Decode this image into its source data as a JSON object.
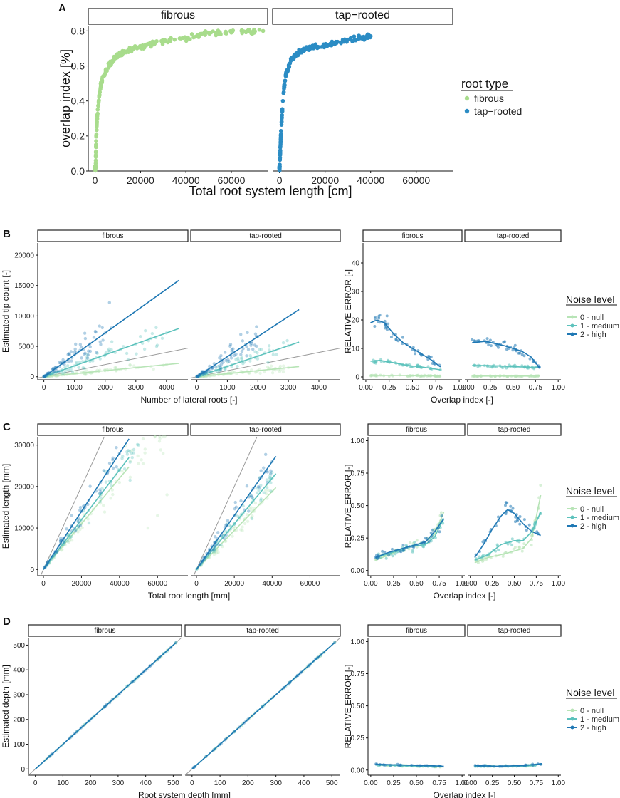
{
  "colors": {
    "fibrous": "#a8dc8c",
    "tap_rooted": "#2b8cc4",
    "noise_null": "#b7e4b6",
    "noise_medium": "#5cc2bc",
    "noise_high": "#1f78b4",
    "identity": "#9a9a9a"
  },
  "panelA": {
    "label": "A",
    "facets": [
      "fibrous",
      "tap−rooted"
    ],
    "xlabel": "Total root system length [cm]",
    "ylabel": "overlap index [%]",
    "xticks": [
      "0",
      "20000",
      "40000",
      "60000"
    ],
    "yticks": [
      "0.0",
      "0.2",
      "0.4",
      "0.6",
      "0.8"
    ],
    "legend": {
      "title": "root type",
      "items": [
        "fibrous",
        "tap−rooted"
      ]
    }
  },
  "panelB": {
    "label": "B",
    "facets": [
      "fibrous",
      "tap-rooted"
    ],
    "left_xlabel": "Number of lateral roots [-]",
    "left_ylabel": "Estimated tip count [-]",
    "left_xticks": [
      "0",
      "1000",
      "2000",
      "3000",
      "4000"
    ],
    "left_yticks": [
      "0",
      "5000",
      "10000",
      "15000",
      "20000"
    ],
    "right_xlabel": "Overlap index [-]",
    "right_ylabel": "RELATIVE ERROR [-]",
    "right_xticks": [
      "0.00",
      "0.25",
      "0.50",
      "0.75",
      "1.00"
    ],
    "right_yticks": [
      "0",
      "10",
      "20",
      "30",
      "40"
    ]
  },
  "panelC": {
    "label": "C",
    "facets": [
      "fibrous",
      "tap-rooted"
    ],
    "left_xlabel": "Total root length [mm]",
    "left_ylabel": "Estimated length [mm]",
    "left_xticks": [
      "0",
      "20000",
      "40000",
      "60000"
    ],
    "left_yticks": [
      "0",
      "10000",
      "20000",
      "30000"
    ],
    "right_xlabel": "Overlap index [-]",
    "right_ylabel": "RELATIVE ERROR [-]",
    "right_xticks": [
      "0.00",
      "0.25",
      "0.50",
      "0.75",
      "1.00"
    ],
    "right_yticks": [
      "0.00",
      "0.25",
      "0.50",
      "0.75",
      "1.00"
    ]
  },
  "panelD": {
    "label": "D",
    "facets": [
      "fibrous",
      "tap-rooted"
    ],
    "left_xlabel": "Root system depth [mm]",
    "left_ylabel": "Estimated depth [mm]",
    "left_xticks": [
      "0",
      "100",
      "200",
      "300",
      "400",
      "500"
    ],
    "left_yticks": [
      "0",
      "100",
      "200",
      "300",
      "400",
      "500"
    ],
    "right_xlabel": "Overlap index [-]",
    "right_ylabel": "RELATIVE ERROR [-]",
    "right_xticks": [
      "0.00",
      "0.25",
      "0.50",
      "0.75",
      "1.00"
    ],
    "right_yticks": [
      "0.00",
      "0.25",
      "0.50",
      "0.75",
      "1.00"
    ]
  },
  "noise_legend": {
    "title": "Noise level",
    "items": [
      "0 - null",
      "1 - medium",
      "2 - high"
    ]
  },
  "chart_data": [
    {
      "id": "A",
      "type": "scatter",
      "title": "",
      "xlabel": "Total root system length [cm]",
      "ylabel": "overlap index [%]",
      "xlim": [
        -3000,
        76000
      ],
      "ylim": [
        0,
        0.83
      ],
      "series": [
        {
          "name": "fibrous",
          "facet": 0,
          "x": [
            200,
            500,
            1000,
            2000,
            3000,
            5000,
            7000,
            10000,
            15000,
            20000,
            25000,
            30000,
            35000,
            40000,
            45000,
            50000,
            55000,
            60000,
            65000,
            70000,
            74000
          ],
          "y": [
            0.02,
            0.2,
            0.32,
            0.45,
            0.52,
            0.58,
            0.62,
            0.66,
            0.69,
            0.71,
            0.73,
            0.74,
            0.75,
            0.76,
            0.77,
            0.79,
            0.79,
            0.79,
            0.8,
            0.8,
            0.8
          ]
        },
        {
          "name": "tap−rooted",
          "facet": 1,
          "x": [
            100,
            300,
            600,
            1000,
            1500,
            2000,
            3000,
            5000,
            7000,
            10000,
            15000,
            20000,
            25000,
            30000,
            35000,
            40000
          ],
          "y": [
            0.02,
            0.1,
            0.2,
            0.3,
            0.4,
            0.48,
            0.56,
            0.63,
            0.66,
            0.69,
            0.71,
            0.72,
            0.73,
            0.75,
            0.76,
            0.77
          ]
        }
      ]
    },
    {
      "id": "B-left",
      "type": "scatter",
      "xlabel": "Number of lateral roots [-]",
      "ylabel": "Estimated tip count [-]",
      "xlim": [
        -200,
        4700
      ],
      "ylim": [
        -500,
        22000
      ],
      "series": [
        {
          "name": "0 - null",
          "facet": 0,
          "slope": 0.5,
          "x": [
            200,
            600,
            1000,
            1500,
            2000,
            2500,
            3000,
            3500,
            4000
          ],
          "y": [
            100,
            300,
            500,
            700,
            1000,
            1200,
            1500,
            1700,
            2000
          ]
        },
        {
          "name": "1 - medium",
          "facet": 0,
          "slope": 1.8,
          "x": [
            200,
            600,
            1000,
            1500,
            2000,
            2500,
            3000,
            3500,
            4000
          ],
          "y": [
            400,
            1100,
            1800,
            2700,
            3600,
            4500,
            5400,
            6300,
            7200
          ]
        },
        {
          "name": "2 - high",
          "facet": 0,
          "slope": 3.6,
          "x": [
            100,
            300,
            600,
            1000,
            1500,
            2000,
            2200
          ],
          "y": [
            400,
            1100,
            2200,
            3600,
            5400,
            7200,
            8000
          ]
        },
        {
          "name": "0 - null",
          "facet": 1,
          "slope": 0.5,
          "x": [
            200,
            600,
            1000,
            1500,
            2000,
            2500,
            3000
          ],
          "y": [
            100,
            300,
            500,
            700,
            1000,
            1200,
            1500
          ]
        },
        {
          "name": "1 - medium",
          "facet": 1,
          "slope": 1.7,
          "x": [
            200,
            600,
            1000,
            1500,
            2000,
            2500,
            3000
          ],
          "y": [
            340,
            1000,
            1700,
            2550,
            3400,
            4250,
            5100
          ]
        },
        {
          "name": "2 - high",
          "facet": 1,
          "slope": 3.3,
          "x": [
            100,
            400,
            800,
            1200,
            1600,
            2000
          ],
          "y": [
            330,
            1300,
            2600,
            4000,
            5300,
            6600
          ]
        }
      ]
    },
    {
      "id": "B-right",
      "type": "line",
      "xlabel": "Overlap index [-]",
      "ylabel": "RELATIVE ERROR [-]",
      "xlim": [
        -0.03,
        1.03
      ],
      "ylim": [
        -1,
        47
      ],
      "series": [
        {
          "name": "0 - null",
          "facet": 0,
          "x": [
            0.05,
            0.2,
            0.4,
            0.6,
            0.8
          ],
          "y": [
            0.5,
            0.5,
            0.5,
            0.4,
            0.3
          ]
        },
        {
          "name": "1 - medium",
          "facet": 0,
          "x": [
            0.05,
            0.15,
            0.3,
            0.45,
            0.6,
            0.7,
            0.8
          ],
          "y": [
            5.5,
            5.8,
            5,
            4,
            3.5,
            3,
            2.5
          ]
        },
        {
          "name": "2 - high",
          "facet": 0,
          "x": [
            0.05,
            0.12,
            0.2,
            0.3,
            0.4,
            0.5,
            0.6,
            0.7,
            0.8
          ],
          "y": [
            19,
            20,
            19,
            15,
            12,
            10,
            8,
            6,
            3.5
          ]
        },
        {
          "name": "0 - null",
          "facet": 1,
          "x": [
            0.05,
            0.3,
            0.5,
            0.7,
            0.8
          ],
          "y": [
            0.3,
            0.3,
            0.3,
            0.3,
            0.3
          ]
        },
        {
          "name": "1 - medium",
          "facet": 1,
          "x": [
            0.05,
            0.2,
            0.4,
            0.6,
            0.8
          ],
          "y": [
            4,
            4,
            3.8,
            3.5,
            3.2
          ]
        },
        {
          "name": "2 - high",
          "facet": 1,
          "x": [
            0.05,
            0.2,
            0.4,
            0.6,
            0.7,
            0.8
          ],
          "y": [
            12,
            12.5,
            11,
            9,
            7,
            3
          ]
        }
      ]
    },
    {
      "id": "C-left",
      "type": "scatter",
      "xlabel": "Total root length [mm]",
      "ylabel": "Estimated length [mm]",
      "xlim": [
        -3000,
        76000
      ],
      "ylim": [
        -1500,
        32000
      ],
      "series": [
        {
          "name": "0 - null",
          "facet": 0,
          "slope": 0.55,
          "x": [
            2000,
            10000,
            20000,
            30000,
            40000,
            55000,
            60000,
            65000
          ],
          "y": [
            1100,
            5500,
            11000,
            16000,
            21000,
            10000,
            13000,
            18000
          ]
        },
        {
          "name": "1 - medium",
          "facet": 0,
          "slope": 0.6,
          "x": [
            2000,
            10000,
            20000,
            30000,
            40000,
            50000
          ],
          "y": [
            1200,
            6000,
            12000,
            18000,
            24000,
            30000
          ]
        },
        {
          "name": "2 - high",
          "facet": 0,
          "slope": 0.7,
          "x": [
            2000,
            10000,
            20000,
            30000,
            40000
          ],
          "y": [
            1400,
            7000,
            14000,
            21000,
            28000
          ]
        },
        {
          "name": "0 - null",
          "facet": 1,
          "slope": 0.47,
          "x": [
            2000,
            10000,
            20000,
            30000,
            40000
          ],
          "y": [
            940,
            4700,
            9400,
            14000,
            18800
          ]
        },
        {
          "name": "1 - medium",
          "facet": 1,
          "slope": 0.55,
          "x": [
            2000,
            10000,
            20000,
            30000,
            40000
          ],
          "y": [
            1100,
            5500,
            11000,
            16500,
            22000
          ]
        },
        {
          "name": "2 - high",
          "facet": 1,
          "slope": 0.65,
          "x": [
            2000,
            10000,
            20000,
            30000,
            40000
          ],
          "y": [
            1300,
            6500,
            13000,
            19500,
            26000
          ]
        }
      ]
    },
    {
      "id": "C-right",
      "type": "line",
      "xlabel": "Overlap index [-]",
      "ylabel": "RELATIVE ERROR [-]",
      "xlim": [
        -0.03,
        1.03
      ],
      "ylim": [
        -0.04,
        1.03
      ],
      "series": [
        {
          "name": "0 - null",
          "facet": 0,
          "x": [
            0.05,
            0.2,
            0.4,
            0.6,
            0.7,
            0.8
          ],
          "y": [
            0.08,
            0.12,
            0.18,
            0.22,
            0.28,
            0.45
          ]
        },
        {
          "name": "1 - medium",
          "facet": 0,
          "x": [
            0.05,
            0.2,
            0.4,
            0.6,
            0.7,
            0.8
          ],
          "y": [
            0.1,
            0.13,
            0.18,
            0.2,
            0.26,
            0.4
          ]
        },
        {
          "name": "2 - high",
          "facet": 0,
          "x": [
            0.05,
            0.2,
            0.4,
            0.5,
            0.6,
            0.7,
            0.8
          ],
          "y": [
            0.1,
            0.14,
            0.18,
            0.2,
            0.22,
            0.3,
            0.4
          ]
        },
        {
          "name": "0 - null",
          "facet": 1,
          "x": [
            0.05,
            0.2,
            0.4,
            0.6,
            0.7,
            0.8
          ],
          "y": [
            0.06,
            0.1,
            0.13,
            0.17,
            0.25,
            0.58
          ]
        },
        {
          "name": "1 - medium",
          "facet": 1,
          "x": [
            0.05,
            0.2,
            0.35,
            0.5,
            0.6,
            0.7,
            0.8
          ],
          "y": [
            0.08,
            0.12,
            0.2,
            0.23,
            0.23,
            0.3,
            0.45
          ]
        },
        {
          "name": "2 - high",
          "facet": 1,
          "x": [
            0.05,
            0.15,
            0.25,
            0.35,
            0.42,
            0.5,
            0.6,
            0.7,
            0.8
          ],
          "y": [
            0.1,
            0.2,
            0.32,
            0.42,
            0.47,
            0.44,
            0.36,
            0.3,
            0.27
          ]
        }
      ]
    },
    {
      "id": "D-left",
      "type": "scatter",
      "xlabel": "Root system depth [mm]",
      "ylabel": "Estimated depth [mm]",
      "xlim": [
        -25,
        530
      ],
      "ylim": [
        -25,
        530
      ],
      "series": [
        {
          "name": "0 - null",
          "facet": 0,
          "slope": 1.0,
          "x": [
            50,
            150,
            250,
            350,
            450,
            510
          ],
          "y": [
            50,
            150,
            250,
            350,
            450,
            510
          ]
        },
        {
          "name": "1 - medium",
          "facet": 0,
          "slope": 1.0,
          "x": [
            50,
            150,
            250,
            350,
            450,
            510
          ],
          "y": [
            50,
            150,
            250,
            350,
            450,
            510
          ]
        },
        {
          "name": "2 - high",
          "facet": 0,
          "slope": 1.0,
          "x": [
            50,
            150,
            250,
            350,
            450,
            510
          ],
          "y": [
            50,
            150,
            250,
            350,
            450,
            510
          ]
        },
        {
          "name": "0 - null",
          "facet": 1,
          "slope": 1.0,
          "x": [
            50,
            150,
            250,
            350,
            450,
            510
          ],
          "y": [
            50,
            150,
            250,
            350,
            450,
            510
          ]
        },
        {
          "name": "1 - medium",
          "facet": 1,
          "slope": 1.0,
          "x": [
            50,
            150,
            250,
            350,
            450,
            510
          ],
          "y": [
            50,
            150,
            250,
            350,
            450,
            510
          ]
        },
        {
          "name": "2 - high",
          "facet": 1,
          "slope": 1.0,
          "x": [
            50,
            150,
            250,
            350,
            450,
            510
          ],
          "y": [
            50,
            150,
            250,
            350,
            450,
            510
          ]
        }
      ]
    },
    {
      "id": "D-right",
      "type": "line",
      "xlabel": "Overlap index [-]",
      "ylabel": "RELATIVE ERROR [-]",
      "xlim": [
        -0.03,
        1.03
      ],
      "ylim": [
        -0.04,
        1.03
      ],
      "series": [
        {
          "name": "0 - null",
          "facet": 0,
          "x": [
            0.05,
            0.3,
            0.6,
            0.8
          ],
          "y": [
            0.04,
            0.035,
            0.03,
            0.025
          ]
        },
        {
          "name": "1 - medium",
          "facet": 0,
          "x": [
            0.05,
            0.3,
            0.6,
            0.8
          ],
          "y": [
            0.04,
            0.035,
            0.03,
            0.025
          ]
        },
        {
          "name": "2 - high",
          "facet": 0,
          "x": [
            0.05,
            0.3,
            0.6,
            0.8
          ],
          "y": [
            0.045,
            0.04,
            0.035,
            0.03
          ]
        },
        {
          "name": "0 - null",
          "facet": 1,
          "x": [
            0.05,
            0.3,
            0.6,
            0.75,
            0.82
          ],
          "y": [
            0.03,
            0.03,
            0.03,
            0.04,
            0.05
          ]
        },
        {
          "name": "1 - medium",
          "facet": 1,
          "x": [
            0.05,
            0.3,
            0.6,
            0.75,
            0.82
          ],
          "y": [
            0.03,
            0.03,
            0.03,
            0.04,
            0.05
          ]
        },
        {
          "name": "2 - high",
          "facet": 1,
          "x": [
            0.05,
            0.3,
            0.6,
            0.75,
            0.82
          ],
          "y": [
            0.035,
            0.03,
            0.035,
            0.045,
            0.05
          ]
        }
      ]
    }
  ]
}
